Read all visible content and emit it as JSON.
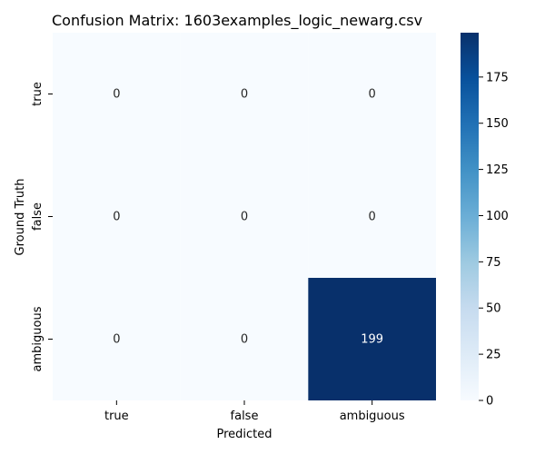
{
  "chart_data": {
    "type": "heatmap",
    "title": "Confusion Matrix: 1603examples_logic_newarg.csv",
    "xlabel": "Predicted",
    "ylabel": "Ground Truth",
    "x_categories": [
      "true",
      "false",
      "ambiguous"
    ],
    "y_categories": [
      "true",
      "false",
      "ambiguous"
    ],
    "values": [
      [
        0,
        0,
        0
      ],
      [
        0,
        0,
        0
      ],
      [
        0,
        0,
        199
      ]
    ],
    "colorbar": {
      "min": 0,
      "max": 199,
      "ticks": [
        0,
        25,
        50,
        75,
        100,
        125,
        150,
        175
      ]
    },
    "colormap": {
      "name": "Blues",
      "low": "#f7fbff",
      "high": "#08306b"
    }
  }
}
